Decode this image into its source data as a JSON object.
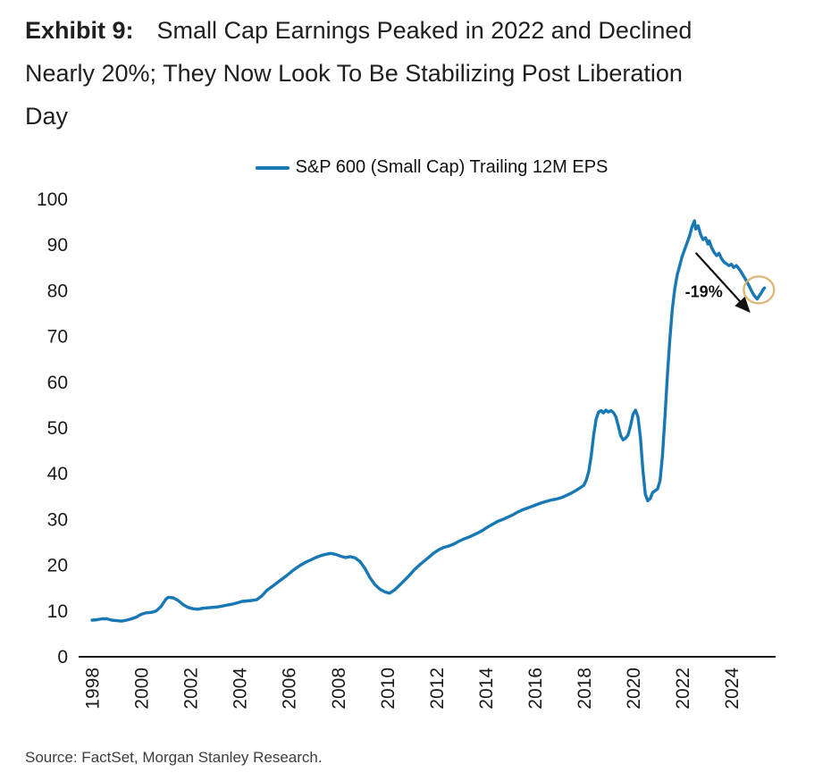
{
  "header": {
    "exhibit_label": "Exhibit 9:",
    "title_line1": "Small Cap Earnings Peaked in 2022 and Declined",
    "title_line2": "Nearly 20%; They Now Look To Be Stabilizing Post Liberation",
    "title_line3": "Day"
  },
  "footer": {
    "source": "Source: FactSet, Morgan Stanley Research."
  },
  "chart_data": {
    "type": "line",
    "title": "Exhibit 9: Small Cap Earnings Peaked in 2022 and Declined Nearly 20%; They Now Look To Be Stabilizing Post Liberation Day",
    "xlabel": "",
    "ylabel": "",
    "xlim": [
      1997.45,
      2025.8
    ],
    "ylim": [
      0,
      100
    ],
    "x_ticks": [
      1998,
      2000,
      2002,
      2004,
      2006,
      2008,
      2010,
      2012,
      2014,
      2016,
      2018,
      2020,
      2022,
      2024
    ],
    "y_ticks": [
      0,
      10,
      20,
      30,
      40,
      50,
      60,
      70,
      80,
      90,
      100
    ],
    "grid": false,
    "legend_position": "top-center",
    "colors": {
      "line": "#1878b4",
      "axis": "#1a1a1a",
      "highlight_gold": "#d8b269",
      "annotation": "#111111"
    },
    "series": [
      {
        "name": "S&P 600 (Small Cap) Trailing 12M EPS",
        "color": "#1878b4",
        "points": [
          [
            1998.0,
            8.0
          ],
          [
            1998.2,
            8.1
          ],
          [
            1998.4,
            8.3
          ],
          [
            1998.6,
            8.3
          ],
          [
            1998.8,
            8.0
          ],
          [
            1999.0,
            7.9
          ],
          [
            1999.2,
            7.8
          ],
          [
            1999.4,
            8.0
          ],
          [
            1999.6,
            8.3
          ],
          [
            1999.8,
            8.7
          ],
          [
            2000.0,
            9.3
          ],
          [
            2000.2,
            9.6
          ],
          [
            2000.4,
            9.7
          ],
          [
            2000.6,
            10.0
          ],
          [
            2000.8,
            11.0
          ],
          [
            2001.0,
            12.6
          ],
          [
            2001.1,
            13.0
          ],
          [
            2001.3,
            12.9
          ],
          [
            2001.5,
            12.3
          ],
          [
            2001.7,
            11.4
          ],
          [
            2001.9,
            10.8
          ],
          [
            2002.1,
            10.5
          ],
          [
            2002.3,
            10.4
          ],
          [
            2002.5,
            10.6
          ],
          [
            2002.7,
            10.7
          ],
          [
            2002.9,
            10.8
          ],
          [
            2003.1,
            10.9
          ],
          [
            2003.3,
            11.1
          ],
          [
            2003.5,
            11.3
          ],
          [
            2003.7,
            11.5
          ],
          [
            2003.9,
            11.8
          ],
          [
            2004.1,
            12.1
          ],
          [
            2004.3,
            12.2
          ],
          [
            2004.5,
            12.3
          ],
          [
            2004.7,
            12.5
          ],
          [
            2004.9,
            13.3
          ],
          [
            2005.1,
            14.5
          ],
          [
            2005.3,
            15.3
          ],
          [
            2005.5,
            16.1
          ],
          [
            2005.7,
            16.9
          ],
          [
            2005.9,
            17.7
          ],
          [
            2006.1,
            18.6
          ],
          [
            2006.3,
            19.4
          ],
          [
            2006.5,
            20.1
          ],
          [
            2006.7,
            20.7
          ],
          [
            2006.9,
            21.2
          ],
          [
            2007.1,
            21.7
          ],
          [
            2007.3,
            22.1
          ],
          [
            2007.5,
            22.4
          ],
          [
            2007.7,
            22.6
          ],
          [
            2007.9,
            22.4
          ],
          [
            2008.1,
            22.0
          ],
          [
            2008.3,
            21.7
          ],
          [
            2008.5,
            21.9
          ],
          [
            2008.7,
            21.6
          ],
          [
            2008.9,
            20.8
          ],
          [
            2009.1,
            19.3
          ],
          [
            2009.3,
            17.3
          ],
          [
            2009.5,
            15.8
          ],
          [
            2009.7,
            14.8
          ],
          [
            2009.9,
            14.2
          ],
          [
            2010.1,
            13.9
          ],
          [
            2010.3,
            14.6
          ],
          [
            2010.5,
            15.6
          ],
          [
            2010.7,
            16.7
          ],
          [
            2010.9,
            17.8
          ],
          [
            2011.1,
            19.0
          ],
          [
            2011.3,
            20.0
          ],
          [
            2011.5,
            20.9
          ],
          [
            2011.7,
            21.8
          ],
          [
            2011.9,
            22.7
          ],
          [
            2012.1,
            23.4
          ],
          [
            2012.3,
            23.9
          ],
          [
            2012.5,
            24.2
          ],
          [
            2012.7,
            24.6
          ],
          [
            2012.9,
            25.2
          ],
          [
            2013.1,
            25.7
          ],
          [
            2013.3,
            26.1
          ],
          [
            2013.5,
            26.6
          ],
          [
            2013.7,
            27.1
          ],
          [
            2013.9,
            27.7
          ],
          [
            2014.1,
            28.4
          ],
          [
            2014.3,
            29.0
          ],
          [
            2014.5,
            29.6
          ],
          [
            2014.7,
            30.0
          ],
          [
            2014.9,
            30.5
          ],
          [
            2015.1,
            31.0
          ],
          [
            2015.3,
            31.6
          ],
          [
            2015.5,
            32.1
          ],
          [
            2015.7,
            32.5
          ],
          [
            2015.9,
            32.9
          ],
          [
            2016.1,
            33.3
          ],
          [
            2016.3,
            33.7
          ],
          [
            2016.5,
            34.0
          ],
          [
            2016.7,
            34.3
          ],
          [
            2016.9,
            34.5
          ],
          [
            2017.1,
            34.8
          ],
          [
            2017.3,
            35.3
          ],
          [
            2017.5,
            35.8
          ],
          [
            2017.7,
            36.4
          ],
          [
            2017.9,
            37.1
          ],
          [
            2018.0,
            37.5
          ],
          [
            2018.1,
            38.6
          ],
          [
            2018.2,
            40.5
          ],
          [
            2018.3,
            44.0
          ],
          [
            2018.4,
            48.5
          ],
          [
            2018.5,
            52.0
          ],
          [
            2018.6,
            53.5
          ],
          [
            2018.7,
            53.8
          ],
          [
            2018.8,
            53.3
          ],
          [
            2018.9,
            53.9
          ],
          [
            2019.0,
            53.5
          ],
          [
            2019.1,
            53.8
          ],
          [
            2019.2,
            53.4
          ],
          [
            2019.3,
            52.5
          ],
          [
            2019.4,
            50.5
          ],
          [
            2019.5,
            48.3
          ],
          [
            2019.6,
            47.4
          ],
          [
            2019.7,
            47.8
          ],
          [
            2019.8,
            48.5
          ],
          [
            2019.9,
            50.5
          ],
          [
            2020.0,
            53.0
          ],
          [
            2020.1,
            53.9
          ],
          [
            2020.2,
            52.5
          ],
          [
            2020.3,
            48.0
          ],
          [
            2020.4,
            41.0
          ],
          [
            2020.5,
            35.5
          ],
          [
            2020.6,
            34.1
          ],
          [
            2020.7,
            34.6
          ],
          [
            2020.8,
            35.9
          ],
          [
            2020.9,
            36.3
          ],
          [
            2021.0,
            36.7
          ],
          [
            2021.1,
            38.5
          ],
          [
            2021.2,
            44.0
          ],
          [
            2021.3,
            52.5
          ],
          [
            2021.4,
            61.5
          ],
          [
            2021.5,
            69.5
          ],
          [
            2021.6,
            76.0
          ],
          [
            2021.7,
            80.5
          ],
          [
            2021.8,
            83.5
          ],
          [
            2021.9,
            85.5
          ],
          [
            2022.0,
            87.5
          ],
          [
            2022.1,
            89.0
          ],
          [
            2022.2,
            90.5
          ],
          [
            2022.3,
            92.0
          ],
          [
            2022.4,
            94.0
          ],
          [
            2022.5,
            95.3
          ],
          [
            2022.55,
            93.5
          ],
          [
            2022.65,
            94.2
          ],
          [
            2022.75,
            92.3
          ],
          [
            2022.85,
            91.2
          ],
          [
            2022.95,
            91.6
          ],
          [
            2023.05,
            90.2
          ],
          [
            2023.1,
            90.9
          ],
          [
            2023.2,
            89.4
          ],
          [
            2023.3,
            88.4
          ],
          [
            2023.4,
            87.7
          ],
          [
            2023.5,
            88.2
          ],
          [
            2023.6,
            87.0
          ],
          [
            2023.7,
            86.3
          ],
          [
            2023.8,
            85.9
          ],
          [
            2023.9,
            85.5
          ],
          [
            2024.0,
            85.8
          ],
          [
            2024.1,
            85.1
          ],
          [
            2024.2,
            85.5
          ],
          [
            2024.3,
            84.9
          ],
          [
            2024.4,
            84.1
          ],
          [
            2024.5,
            83.2
          ],
          [
            2024.6,
            82.3
          ],
          [
            2024.7,
            81.3
          ],
          [
            2024.8,
            80.2
          ],
          [
            2024.9,
            79.2
          ],
          [
            2025.0,
            78.5
          ],
          [
            2025.05,
            78.2
          ],
          [
            2025.1,
            78.6
          ],
          [
            2025.2,
            79.4
          ],
          [
            2025.3,
            80.3
          ],
          [
            2025.35,
            80.6
          ]
        ]
      }
    ],
    "annotation": {
      "label": "-19%",
      "arrow_from": [
        2022.55,
        88.3
      ],
      "arrow_to": [
        2024.72,
        75.5
      ],
      "label_pos": [
        2022.88,
        78.6
      ]
    },
    "highlight_circle": {
      "center": [
        2025.12,
        80.2
      ],
      "rx": 17,
      "ry": 15,
      "color": "#d8b269"
    }
  }
}
